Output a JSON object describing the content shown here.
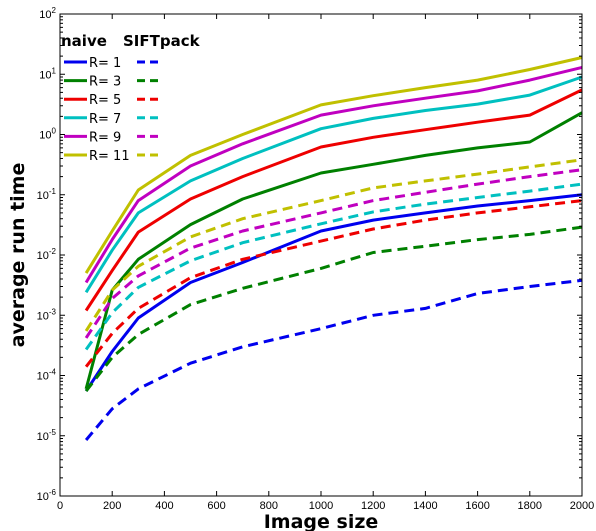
{
  "chart_data": {
    "type": "line",
    "xlabel": "Image size",
    "ylabel": "average run time",
    "x_scale": "linear",
    "y_scale": "log",
    "xlim": [
      0,
      2000
    ],
    "ylim": [
      1e-06,
      100
    ],
    "grid": false,
    "legend_placement": "top-left",
    "x_ticks": [
      "0",
      "200",
      "400",
      "600",
      "800",
      "1000",
      "1200",
      "1400",
      "1600",
      "1800",
      "2000"
    ],
    "y_ticks": [
      {
        "base": "10",
        "exp": "2",
        "value": 100
      },
      {
        "base": "10",
        "exp": "1",
        "value": 10
      },
      {
        "base": "10",
        "exp": "0",
        "value": 1
      },
      {
        "base": "10",
        "exp": "-1",
        "value": 0.1
      },
      {
        "base": "10",
        "exp": "-2",
        "value": 0.01
      },
      {
        "base": "10",
        "exp": "-3",
        "value": 0.001
      },
      {
        "base": "10",
        "exp": "-4",
        "value": 0.0001
      },
      {
        "base": "10",
        "exp": "-5",
        "value": 1e-05
      },
      {
        "base": "10",
        "exp": "-6",
        "value": 1e-06
      }
    ],
    "legend_headers": [
      "naive",
      "SIFTpack"
    ],
    "legend_labels": [
      "R= 1",
      "R= 3",
      "R= 5",
      "R= 7",
      "R= 9",
      "R= 11"
    ],
    "series": [
      {
        "name": "naive R= 1",
        "color": "#0000ee",
        "dash": false,
        "x": [
          100,
          200,
          300,
          500,
          700,
          1000,
          1200,
          1400,
          1600,
          1800,
          2000
        ],
        "y": [
          5.5e-05,
          0.00025,
          0.0009,
          0.0035,
          0.0075,
          0.025,
          0.038,
          0.05,
          0.065,
          0.08,
          0.1
        ]
      },
      {
        "name": "SIFTpack R= 1",
        "color": "#0000ee",
        "dash": true,
        "x": [
          100,
          200,
          300,
          500,
          700,
          1000,
          1200,
          1400,
          1600,
          1800,
          2000
        ],
        "y": [
          8.5e-06,
          2.8e-05,
          6e-05,
          0.00016,
          0.0003,
          0.0006,
          0.001,
          0.0013,
          0.0023,
          0.003,
          0.0038
        ]
      },
      {
        "name": "naive R= 3",
        "color": "#008000",
        "dash": false,
        "x": [
          100,
          200,
          300,
          500,
          700,
          1000,
          1200,
          1400,
          1600,
          1800,
          2000
        ],
        "y": [
          6e-05,
          0.0026,
          0.0085,
          0.032,
          0.085,
          0.23,
          0.32,
          0.45,
          0.6,
          0.75,
          2.3
        ]
      },
      {
        "name": "SIFTpack R= 3",
        "color": "#008000",
        "dash": true,
        "x": [
          100,
          200,
          300,
          500,
          700,
          1000,
          1200,
          1400,
          1600,
          1800,
          2000
        ],
        "y": [
          5.5e-05,
          0.0002,
          0.00048,
          0.0015,
          0.0028,
          0.006,
          0.011,
          0.014,
          0.018,
          0.022,
          0.029
        ]
      },
      {
        "name": "naive R= 5",
        "color": "#ee0000",
        "dash": false,
        "x": [
          100,
          200,
          300,
          500,
          700,
          1000,
          1200,
          1400,
          1600,
          1800,
          2000
        ],
        "y": [
          0.0012,
          0.0055,
          0.024,
          0.085,
          0.2,
          0.62,
          0.9,
          1.2,
          1.6,
          2.1,
          5.5
        ]
      },
      {
        "name": "SIFTpack R= 5",
        "color": "#ee0000",
        "dash": true,
        "x": [
          100,
          200,
          300,
          500,
          700,
          1000,
          1200,
          1400,
          1600,
          1800,
          2000
        ],
        "y": [
          0.00014,
          0.0005,
          0.0013,
          0.0042,
          0.0085,
          0.017,
          0.027,
          0.038,
          0.05,
          0.063,
          0.08
        ]
      },
      {
        "name": "naive R= 7",
        "color": "#00c0c0",
        "dash": false,
        "x": [
          100,
          200,
          300,
          500,
          700,
          1000,
          1200,
          1400,
          1600,
          1800,
          2000
        ],
        "y": [
          0.0024,
          0.012,
          0.05,
          0.17,
          0.4,
          1.25,
          1.85,
          2.5,
          3.2,
          4.5,
          9
        ]
      },
      {
        "name": "SIFTpack R= 7",
        "color": "#00c0c0",
        "dash": true,
        "x": [
          100,
          200,
          300,
          500,
          700,
          1000,
          1200,
          1400,
          1600,
          1800,
          2000
        ],
        "y": [
          0.00027,
          0.0011,
          0.0029,
          0.008,
          0.016,
          0.033,
          0.052,
          0.07,
          0.09,
          0.115,
          0.15
        ]
      },
      {
        "name": "naive R= 9",
        "color": "#c000c0",
        "dash": false,
        "x": [
          100,
          200,
          300,
          500,
          700,
          1000,
          1200,
          1400,
          1600,
          1800,
          2000
        ],
        "y": [
          0.0035,
          0.018,
          0.08,
          0.3,
          0.7,
          2.1,
          3,
          4,
          5.3,
          8,
          13
        ]
      },
      {
        "name": "SIFTpack R= 9",
        "color": "#c000c0",
        "dash": true,
        "x": [
          100,
          200,
          300,
          500,
          700,
          1000,
          1200,
          1400,
          1600,
          1800,
          2000
        ],
        "y": [
          0.00042,
          0.0019,
          0.0045,
          0.013,
          0.025,
          0.05,
          0.08,
          0.11,
          0.15,
          0.2,
          0.26
        ]
      },
      {
        "name": "naive R= 11",
        "color": "#c0c000",
        "dash": false,
        "x": [
          100,
          200,
          300,
          500,
          700,
          1000,
          1200,
          1400,
          1600,
          1800,
          2000
        ],
        "y": [
          0.005,
          0.025,
          0.12,
          0.45,
          1,
          3.1,
          4.4,
          6,
          8,
          12,
          19
        ]
      },
      {
        "name": "SIFTpack R= 11",
        "color": "#c0c000",
        "dash": true,
        "x": [
          100,
          200,
          300,
          500,
          700,
          1000,
          1200,
          1400,
          1600,
          1800,
          2000
        ],
        "y": [
          0.00055,
          0.0026,
          0.0065,
          0.02,
          0.04,
          0.08,
          0.13,
          0.17,
          0.22,
          0.29,
          0.38
        ]
      }
    ]
  }
}
